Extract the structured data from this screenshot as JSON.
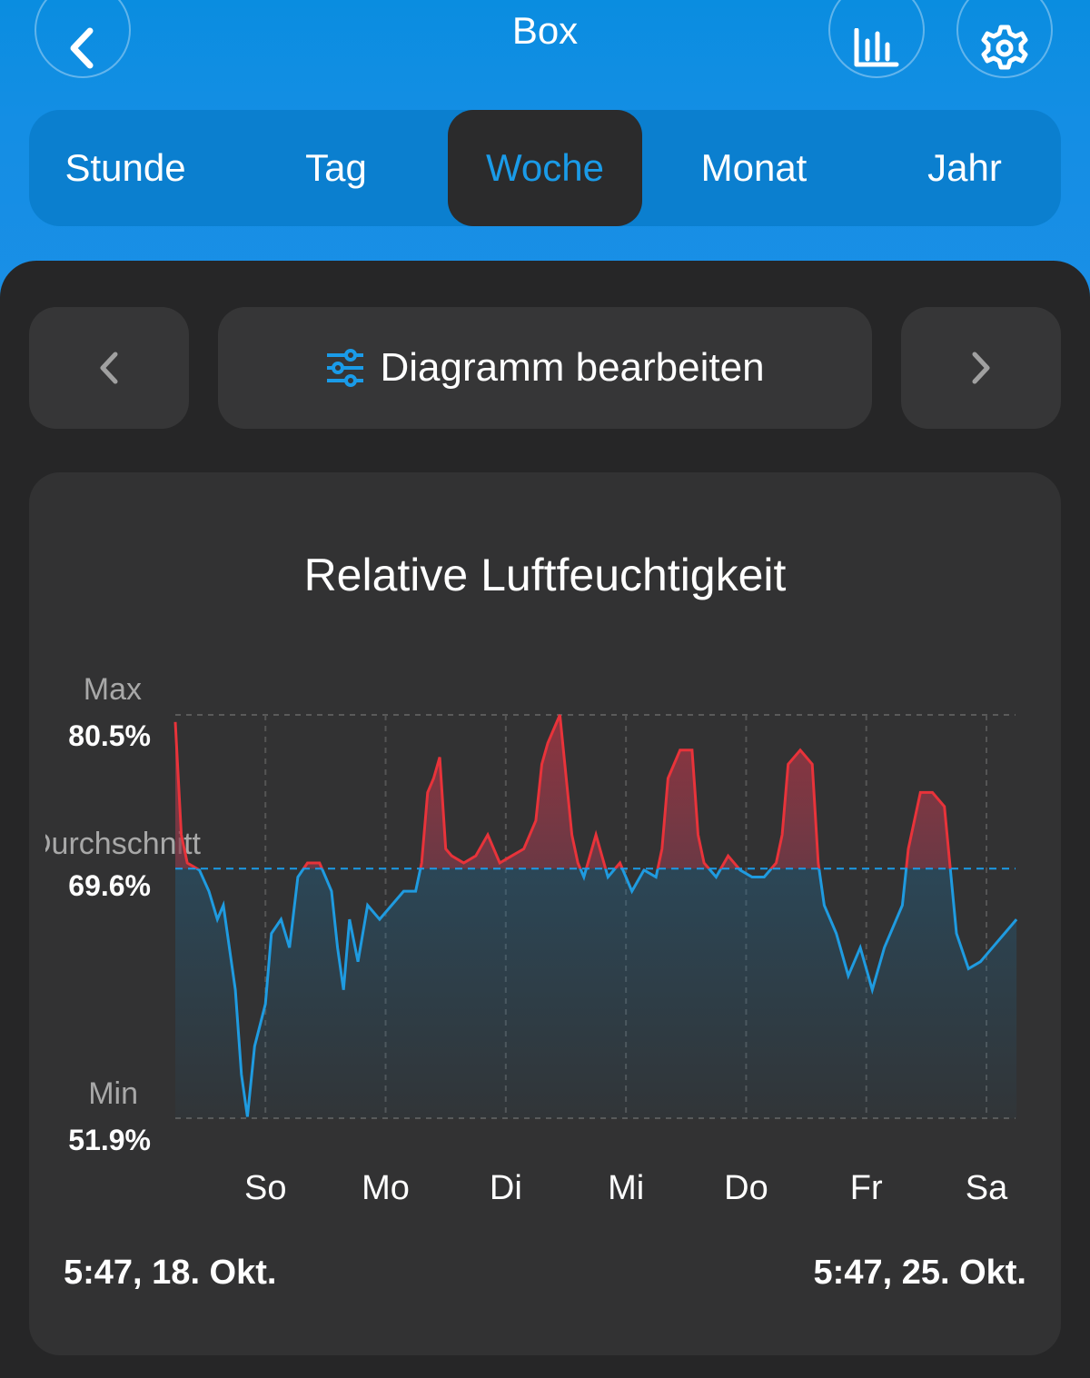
{
  "header": {
    "title": "Box",
    "back_icon": "chevron-left-icon",
    "stats_icon": "bar-chart-icon",
    "settings_icon": "gear-icon"
  },
  "tabs": [
    {
      "label": "Stunde",
      "active": false
    },
    {
      "label": "Tag",
      "active": false
    },
    {
      "label": "Woche",
      "active": true
    },
    {
      "label": "Monat",
      "active": false
    },
    {
      "label": "Jahr",
      "active": false
    }
  ],
  "toolbar": {
    "prev_icon": "chevron-left-icon",
    "edit_label": "Diagramm bearbeiten",
    "edit_icon": "sliders-icon",
    "next_icon": "chevron-right-icon"
  },
  "chart_labels": {
    "max_label": "Max",
    "max_value": "80.5%",
    "avg_label": "Durchschnitt",
    "avg_value": "69.6%",
    "min_label": "Min",
    "min_value": "51.9%"
  },
  "range": {
    "start": "5:47,  18. Okt.",
    "end": "5:47,  25. Okt."
  },
  "colors": {
    "accent": "#1a9be8",
    "below_avg": "#1f9be0",
    "above_avg": "#e8333a",
    "panel": "#262627",
    "card": "#323233"
  },
  "chart_data": {
    "type": "line",
    "title": "Relative Luftfeuchtigkeit",
    "xlabel": "",
    "ylabel": "",
    "x_ticks": [
      "So",
      "Mo",
      "Di",
      "Mi",
      "Do",
      "Fr",
      "Sa"
    ],
    "ylim": [
      51.9,
      80.5
    ],
    "average": 69.6,
    "grid": true,
    "series": [
      {
        "x_days": [
          0.0,
          0.05,
          0.1,
          0.2,
          0.28,
          0.35,
          0.4,
          0.45,
          0.5,
          0.55,
          0.6,
          0.66,
          0.75,
          0.8,
          0.88,
          0.95,
          1.02,
          1.1,
          1.2,
          1.25,
          1.3,
          1.35,
          1.4,
          1.45,
          1.52,
          1.6,
          1.7,
          1.8,
          1.9,
          2.0,
          2.05,
          2.1,
          2.15,
          2.2,
          2.25,
          2.3,
          2.4,
          2.5,
          2.6,
          2.7,
          2.8,
          2.9,
          3.0,
          3.05,
          3.1,
          3.2,
          3.3,
          3.35,
          3.4,
          3.5,
          3.6,
          3.7,
          3.8,
          3.9,
          4.0,
          4.05,
          4.1,
          4.2,
          4.3,
          4.35,
          4.4,
          4.5,
          4.6,
          4.7,
          4.8,
          4.9,
          5.0,
          5.05,
          5.1,
          5.2,
          5.3,
          5.35,
          5.4,
          5.5,
          5.6,
          5.7,
          5.8,
          5.9,
          6.0,
          6.05,
          6.1,
          6.2,
          6.3,
          6.4,
          6.5,
          6.6,
          6.7,
          6.8,
          6.9,
          7.0
        ],
        "values": [
          80.0,
          72.0,
          70.0,
          69.5,
          68.0,
          66.0,
          67.0,
          64.0,
          61.0,
          55.0,
          52.0,
          57.0,
          60.0,
          65.0,
          66.0,
          64.0,
          69.0,
          70.0,
          70.0,
          69.0,
          68.0,
          64.0,
          61.0,
          66.0,
          63.0,
          67.0,
          66.0,
          67.0,
          68.0,
          68.0,
          70.0,
          75.0,
          76.0,
          77.5,
          71.0,
          70.5,
          70.0,
          70.5,
          72.0,
          70.0,
          70.5,
          71.0,
          73.0,
          77.0,
          78.5,
          80.5,
          72.0,
          70.0,
          69.0,
          72.0,
          69.0,
          70.0,
          68.0,
          69.5,
          69.0,
          71.0,
          76.0,
          78.0,
          78.0,
          72.0,
          70.0,
          69.0,
          70.5,
          69.5,
          69.0,
          69.0,
          70.0,
          72.0,
          77.0,
          78.0,
          77.0,
          70.0,
          67.0,
          65.0,
          62.0,
          64.0,
          61.0,
          64.0,
          66.0,
          67.0,
          71.0,
          75.0,
          75.0,
          74.0,
          65.0,
          62.5,
          63.0,
          64.0,
          65.0,
          66.0
        ]
      }
    ]
  }
}
